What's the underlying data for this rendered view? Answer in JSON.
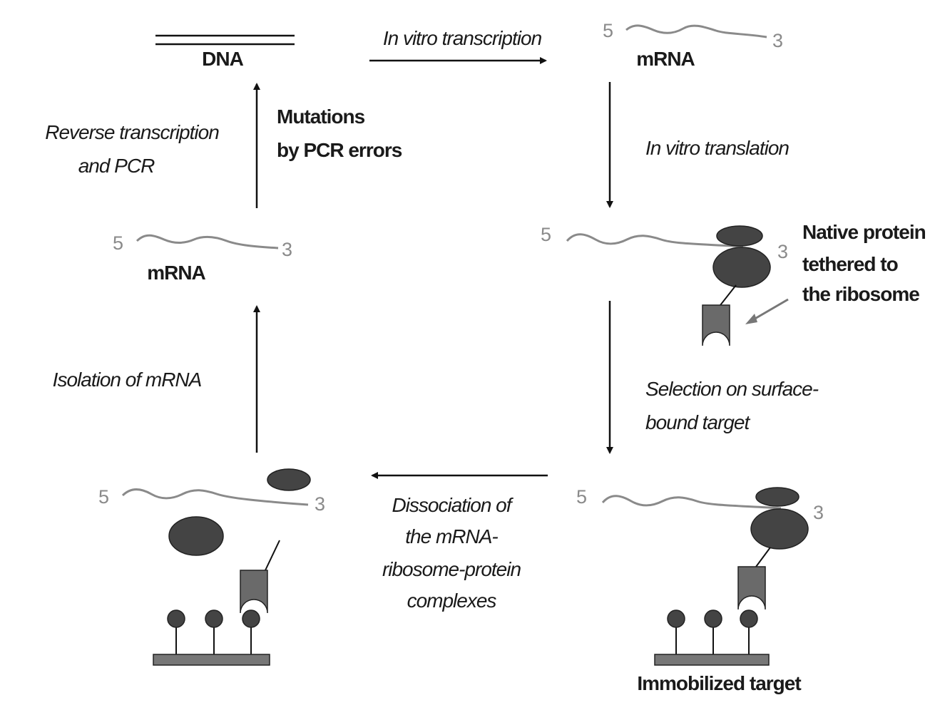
{
  "dna": {
    "label": "DNA"
  },
  "mrna_top": {
    "end5": "5",
    "end3": "3",
    "label": "mRNA"
  },
  "mrna_left": {
    "end5": "5",
    "end3": "3",
    "label": "mRNA"
  },
  "complex_native": {
    "end5": "5",
    "end3": "3",
    "label": [
      "Native protein",
      "tethered to",
      "the ribosome"
    ]
  },
  "complex_bound": {
    "end5": "5",
    "end3": "3",
    "label": "Immobilized target"
  },
  "complex_dissociated": {
    "end5": "5",
    "end3": "3"
  },
  "steps": {
    "transcription": "In vitro transcription",
    "translation": "In vitro translation",
    "selection": [
      "Selection on surface-",
      "bound target"
    ],
    "dissociation": [
      "Dissociation of",
      "the mRNA-",
      "ribosome-protein",
      "complexes"
    ],
    "isolation": "Isolation of mRNA",
    "reverse_transcription": [
      "Reverse transcription",
      "and PCR"
    ],
    "mutations": [
      "Mutations",
      "by PCR errors"
    ]
  }
}
